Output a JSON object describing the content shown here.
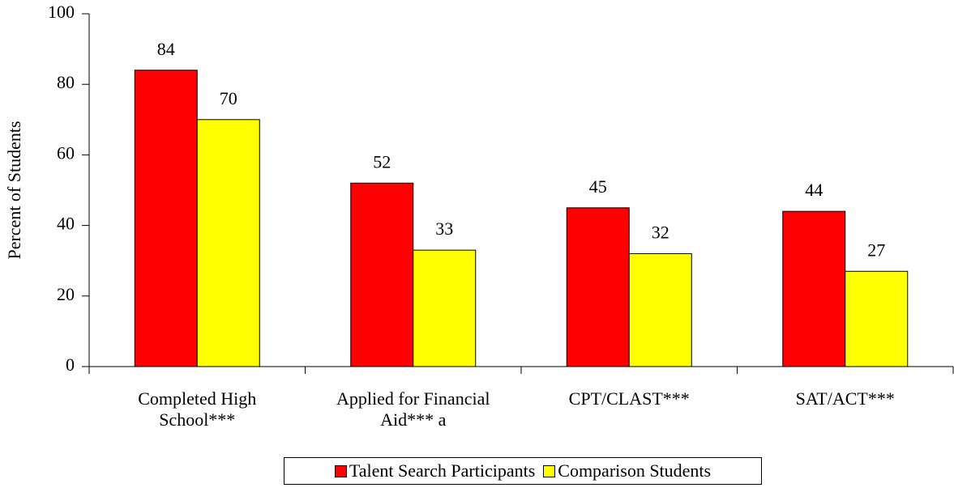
{
  "chart_data": {
    "type": "bar",
    "y_label": "Percent of Students",
    "categories": [
      "Completed High School***",
      "Applied for Financial Aid*** a",
      "CPT/CLAST***",
      "SAT/ACT***"
    ],
    "series": [
      {
        "name": "Talent Search Participants",
        "color": "#ff0000",
        "values": [
          84,
          52,
          45,
          44
        ]
      },
      {
        "name": "Comparison Students",
        "color": "#ffff00",
        "values": [
          70,
          33,
          32,
          27
        ]
      }
    ],
    "ylim": [
      0,
      100
    ],
    "yticks": [
      0,
      20,
      40,
      60,
      80,
      100
    ],
    "grid": false,
    "legend": "bottom"
  }
}
